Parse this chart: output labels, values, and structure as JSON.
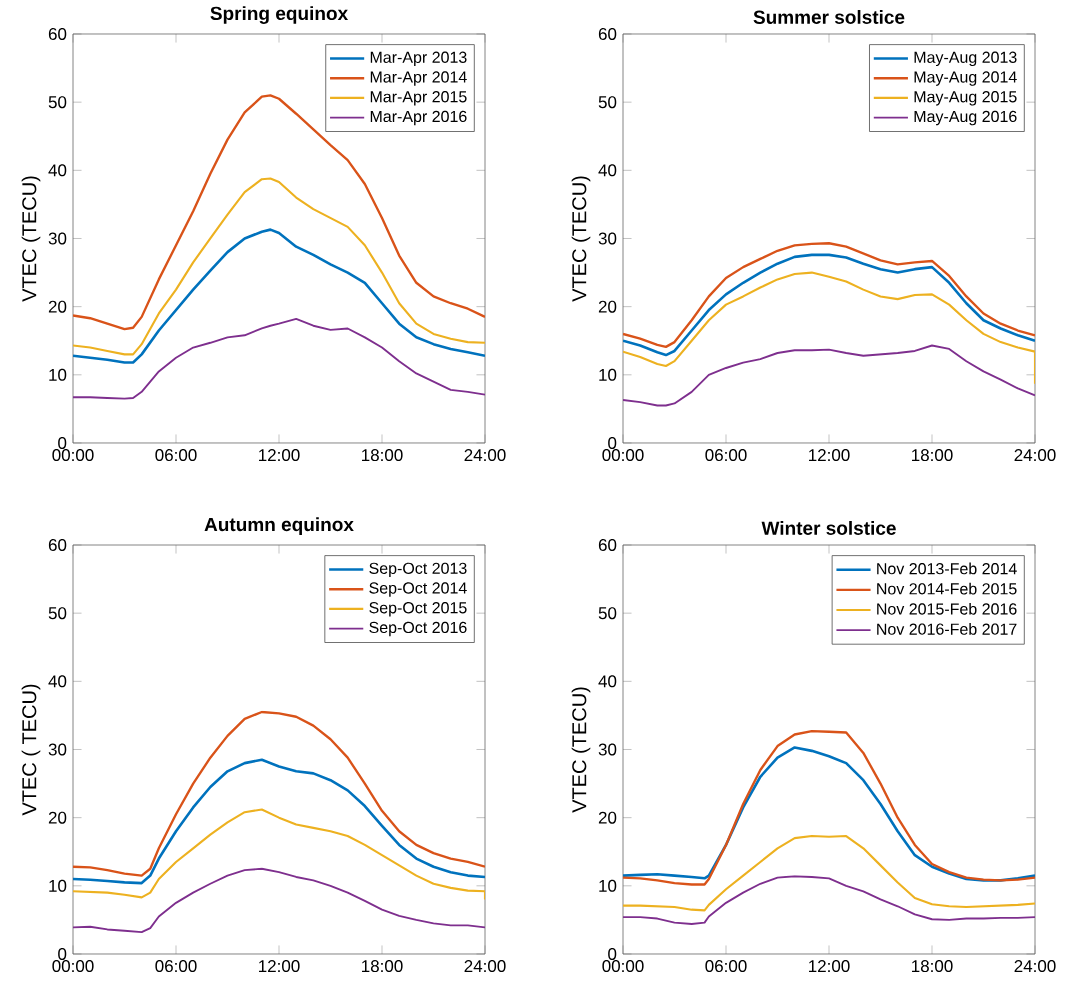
{
  "chart_data": [
    {
      "type": "line",
      "title": "Spring equinox",
      "ylabel": "VTEC (TECU)",
      "xlim": [
        0,
        24
      ],
      "ylim": [
        0,
        60
      ],
      "xticks": [
        {
          "value": 0,
          "label": "00:00"
        },
        {
          "value": 6,
          "label": "06:00"
        },
        {
          "value": 12,
          "label": "12:00"
        },
        {
          "value": 18,
          "label": "18:00"
        },
        {
          "value": 24,
          "label": "24:00"
        }
      ],
      "yticks": [
        0,
        10,
        20,
        30,
        40,
        50,
        60
      ],
      "grid": false,
      "legend": "top right",
      "x": [
        0,
        1,
        2,
        3,
        3.5,
        4,
        5,
        6,
        7,
        8,
        9,
        10,
        11,
        11.5,
        12,
        13,
        14,
        15,
        16,
        17,
        18,
        19,
        20,
        21,
        22,
        23,
        24
      ],
      "series": [
        {
          "name": "Mar-Apr 2013",
          "color": "#0072bd",
          "values": [
            12.8,
            12.5,
            12.2,
            11.8,
            11.8,
            13,
            16.5,
            19.5,
            22.5,
            25.3,
            28,
            30,
            31,
            31.3,
            30.8,
            28.8,
            27.6,
            26.2,
            25,
            23.5,
            20.5,
            17.5,
            15.5,
            14.5,
            13.8,
            13.3,
            12.8
          ]
        },
        {
          "name": "Mar-Apr 2014",
          "color": "#d95319",
          "values": [
            18.7,
            18.3,
            17.5,
            16.7,
            16.9,
            18.5,
            24,
            29,
            34,
            39.5,
            44.5,
            48.5,
            50.8,
            51,
            50.5,
            48.3,
            46,
            43.7,
            41.5,
            38,
            33,
            27.5,
            23.5,
            21.5,
            20.5,
            19.7,
            18.5
          ]
        },
        {
          "name": "Mar-Apr 2015",
          "color": "#edb120",
          "values": [
            14.3,
            14,
            13.5,
            13,
            13,
            14.5,
            19,
            22.5,
            26.5,
            30,
            33.5,
            36.8,
            38.7,
            38.8,
            38.3,
            36,
            34.3,
            33,
            31.7,
            29,
            25,
            20.5,
            17.5,
            16,
            15.3,
            14.8,
            14.7
          ]
        },
        {
          "name": "Mar-Apr 2016",
          "color": "#7e2f8e",
          "values": [
            6.7,
            6.7,
            6.6,
            6.5,
            6.6,
            7.5,
            10.5,
            12.5,
            14,
            14.7,
            15.5,
            15.8,
            16.8,
            17.2,
            17.5,
            18.2,
            17.2,
            16.6,
            16.8,
            15.5,
            14,
            12,
            10.2,
            9,
            7.8,
            7.5,
            7.1
          ]
        }
      ]
    },
    {
      "type": "line",
      "title": "Summer solstice",
      "ylabel": "VTEC (TECU)",
      "xlim": [
        0,
        24
      ],
      "ylim": [
        0,
        60
      ],
      "xticks": [
        {
          "value": 0,
          "label": "00:00"
        },
        {
          "value": 6,
          "label": "06:00"
        },
        {
          "value": 12,
          "label": "12:00"
        },
        {
          "value": 18,
          "label": "18:00"
        },
        {
          "value": 24,
          "label": "24:00"
        }
      ],
      "yticks": [
        0,
        10,
        20,
        30,
        40,
        50,
        60
      ],
      "grid": false,
      "legend": "top right",
      "x": [
        0,
        1,
        2,
        2.5,
        3,
        4,
        5,
        6,
        7,
        8,
        9,
        10,
        11,
        12,
        13,
        14,
        15,
        16,
        17,
        18,
        19,
        20,
        21,
        22,
        23,
        24
      ],
      "series": [
        {
          "name": "May-Aug 2013",
          "color": "#0072bd",
          "values": [
            15,
            14.3,
            13.3,
            12.9,
            13.5,
            16.5,
            19.5,
            21.8,
            23.5,
            25,
            26.3,
            27.3,
            27.6,
            27.6,
            27.2,
            26.3,
            25.5,
            25,
            25.5,
            25.8,
            23.5,
            20.5,
            18,
            16.8,
            15.8,
            15
          ]
        },
        {
          "name": "May-Aug 2014",
          "color": "#d95319",
          "values": [
            16,
            15.3,
            14.4,
            14.1,
            14.8,
            18,
            21.5,
            24.2,
            25.8,
            27,
            28.2,
            29,
            29.2,
            29.3,
            28.8,
            27.8,
            26.8,
            26.2,
            26.5,
            26.7,
            24.5,
            21.5,
            19,
            17.5,
            16.5,
            15.8
          ]
        },
        {
          "name": "May-Aug 2015",
          "color": "#edb120",
          "x": [
            0,
            1,
            2,
            2.5,
            3,
            4,
            5,
            6,
            7,
            8,
            9,
            10,
            11,
            12,
            13,
            14,
            15,
            16,
            17,
            18,
            19,
            20,
            21,
            22,
            23,
            24,
            24
          ],
          "values": [
            13.4,
            12.6,
            11.6,
            11.3,
            12,
            15,
            18,
            20.3,
            21.5,
            22.8,
            24,
            24.8,
            25,
            24.4,
            23.7,
            22.5,
            21.5,
            21.1,
            21.7,
            21.8,
            20.3,
            18,
            16,
            14.8,
            14,
            13.4,
            8.7
          ]
        },
        {
          "name": "May-Aug 2016",
          "color": "#7e2f8e",
          "values": [
            6.3,
            6,
            5.5,
            5.5,
            5.8,
            7.5,
            10,
            11,
            11.8,
            12.3,
            13.2,
            13.6,
            13.6,
            13.7,
            13.2,
            12.8,
            13,
            13.2,
            13.5,
            14.3,
            13.8,
            12,
            10.5,
            9.3,
            8,
            7
          ]
        }
      ]
    },
    {
      "type": "line",
      "title": "Autumn equinox",
      "ylabel": "VTEC ( TECU)",
      "xlim": [
        0,
        24
      ],
      "ylim": [
        0,
        60
      ],
      "xticks": [
        {
          "value": 0,
          "label": "00:00"
        },
        {
          "value": 6,
          "label": "06:00"
        },
        {
          "value": 12,
          "label": "12:00"
        },
        {
          "value": 18,
          "label": "18:00"
        },
        {
          "value": 24,
          "label": "24:00"
        }
      ],
      "yticks": [
        0,
        10,
        20,
        30,
        40,
        50,
        60
      ],
      "grid": false,
      "legend": "top right",
      "x": [
        0,
        1,
        2,
        3,
        4,
        4.5,
        5,
        6,
        7,
        8,
        9,
        10,
        11,
        12,
        13,
        14,
        15,
        16,
        17,
        18,
        19,
        20,
        21,
        22,
        23,
        24
      ],
      "series": [
        {
          "name": "Sep-Oct 2013",
          "color": "#0072bd",
          "values": [
            11,
            10.9,
            10.7,
            10.5,
            10.4,
            11.5,
            14,
            18,
            21.5,
            24.5,
            26.8,
            28,
            28.5,
            27.5,
            26.8,
            26.5,
            25.5,
            24,
            21.7,
            18.8,
            16,
            14,
            12.8,
            12,
            11.5,
            11.3
          ]
        },
        {
          "name": "Sep-Oct 2014",
          "color": "#d95319",
          "values": [
            12.8,
            12.7,
            12.3,
            11.8,
            11.5,
            12.5,
            15.5,
            20.5,
            25,
            28.8,
            32,
            34.5,
            35.5,
            35.3,
            34.8,
            33.5,
            31.5,
            28.8,
            25,
            21,
            18,
            16,
            14.8,
            14,
            13.5,
            12.8
          ]
        },
        {
          "name": "Sep-Oct 2015",
          "color": "#edb120",
          "x": [
            0,
            1,
            2,
            3,
            4,
            4.5,
            5,
            6,
            7,
            8,
            9,
            10,
            11,
            12,
            13,
            14,
            15,
            16,
            17,
            18,
            19,
            20,
            21,
            22,
            23,
            24,
            24
          ],
          "values": [
            9.2,
            9.1,
            9,
            8.7,
            8.3,
            9,
            11,
            13.5,
            15.5,
            17.5,
            19.3,
            20.8,
            21.2,
            20,
            19,
            18.5,
            18,
            17.3,
            16,
            14.5,
            13,
            11.5,
            10.3,
            9.7,
            9.3,
            9.2,
            8
          ]
        },
        {
          "name": "Sep-Oct 2016",
          "color": "#7e2f8e",
          "values": [
            3.9,
            4,
            3.6,
            3.4,
            3.2,
            3.8,
            5.5,
            7.5,
            9,
            10.3,
            11.5,
            12.3,
            12.5,
            12,
            11.3,
            10.8,
            10,
            9,
            7.8,
            6.5,
            5.6,
            5,
            4.5,
            4.2,
            4.2,
            3.9
          ]
        }
      ]
    },
    {
      "type": "line",
      "title": "Winter solstice",
      "ylabel": "VTEC (TECU)",
      "xlim": [
        0,
        24
      ],
      "ylim": [
        0,
        60
      ],
      "xticks": [
        {
          "value": 0,
          "label": "00:00"
        },
        {
          "value": 6,
          "label": "06:00"
        },
        {
          "value": 12,
          "label": "12:00"
        },
        {
          "value": 18,
          "label": "18:00"
        },
        {
          "value": 24,
          "label": "24:00"
        }
      ],
      "yticks": [
        0,
        10,
        20,
        30,
        40,
        50,
        60
      ],
      "grid": false,
      "legend": "top right",
      "x": [
        0,
        1,
        2,
        3,
        4,
        4.75,
        5,
        6,
        7,
        8,
        9,
        10,
        11,
        12,
        13,
        14,
        15,
        16,
        17,
        18,
        19,
        20,
        21,
        22,
        23,
        24
      ],
      "series": [
        {
          "name": "Nov 2013-Feb 2014",
          "color": "#0072bd",
          "values": [
            11.5,
            11.6,
            11.7,
            11.5,
            11.3,
            11.1,
            11.5,
            16,
            21.5,
            26,
            28.8,
            30.3,
            29.8,
            29,
            28,
            25.5,
            22,
            18,
            14.5,
            12.8,
            11.8,
            11,
            10.8,
            10.8,
            11.1,
            11.5
          ]
        },
        {
          "name": "Nov 2014-Feb 2015",
          "color": "#d95319",
          "values": [
            11.2,
            11.1,
            10.8,
            10.4,
            10.2,
            10.2,
            11,
            16,
            22,
            27,
            30.5,
            32.2,
            32.7,
            32.6,
            32.5,
            29.5,
            25,
            20,
            16,
            13.2,
            12,
            11.2,
            10.9,
            10.8,
            10.9,
            11.2
          ]
        },
        {
          "name": "Nov 2015-Feb 2016",
          "color": "#edb120",
          "values": [
            7.1,
            7.1,
            7,
            6.9,
            6.5,
            6.4,
            7.2,
            9.5,
            11.5,
            13.5,
            15.5,
            17,
            17.3,
            17.2,
            17.3,
            15.5,
            13,
            10.5,
            8.2,
            7.3,
            7,
            6.9,
            7,
            7.1,
            7.2,
            7.4
          ]
        },
        {
          "name": "Nov 2016-Feb 2017",
          "color": "#7e2f8e",
          "values": [
            5.4,
            5.4,
            5.2,
            4.6,
            4.4,
            4.6,
            5.5,
            7.5,
            9,
            10.3,
            11.2,
            11.4,
            11.3,
            11.1,
            10,
            9.2,
            8,
            7,
            5.8,
            5.1,
            5,
            5.2,
            5.2,
            5.3,
            5.3,
            5.4
          ]
        }
      ]
    }
  ]
}
